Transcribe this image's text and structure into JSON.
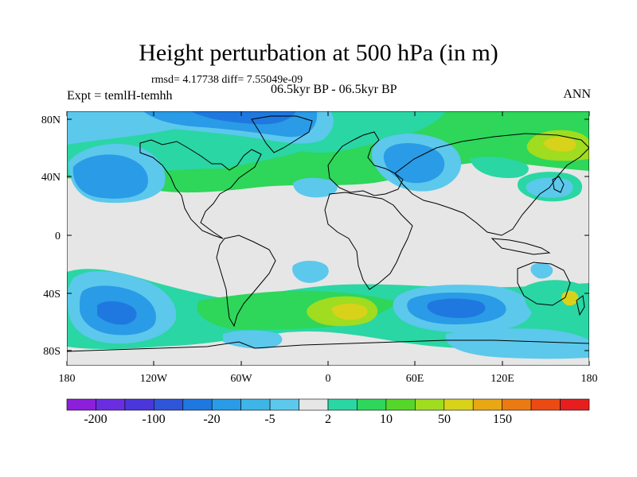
{
  "title": "Height perturbation at 500 hPa (in m)",
  "stats_line": "rmsd= 4.17738 diff= 7.55049e-09",
  "expt_label": "Expt = temlH-temhh",
  "period_label": "06.5kyr BP - 06.5kyr BP",
  "season_label": "ANN",
  "lat_labels": [
    "80N",
    "40N",
    "0",
    "40S",
    "80S"
  ],
  "lon_labels": [
    "180",
    "120W",
    "60W",
    "0",
    "60E",
    "120E",
    "180"
  ],
  "colorbar": {
    "colors": [
      "#8c1fd9",
      "#6a2ee0",
      "#4a36da",
      "#2f55d8",
      "#1f78e0",
      "#2a9be6",
      "#3db5e6",
      "#5cc8ec",
      "#e6e6e6",
      "#2ad6a4",
      "#2ed65a",
      "#56d62a",
      "#a0dc20",
      "#d8d21a",
      "#e8a814",
      "#ec7a12",
      "#ec4a14",
      "#e61e1e"
    ],
    "tick_labels": [
      "-200",
      "-100",
      "-20",
      "-5",
      "2",
      "10",
      "50",
      "150"
    ]
  },
  "colors": {
    "land_bg": "#e6e6e6",
    "light_blue": "#5cc8ec",
    "mid_blue": "#2a9be6",
    "deep_blue": "#1f78e0",
    "teal_green": "#2ad6a4",
    "green": "#2ed65a",
    "yellow_green": "#a0dc20",
    "yellow": "#d8d21a"
  }
}
